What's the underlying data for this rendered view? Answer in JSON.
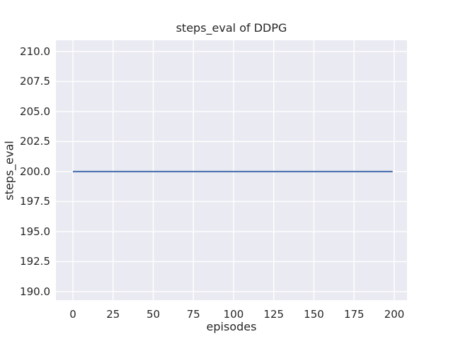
{
  "chart_data": {
    "type": "line",
    "title": "steps_eval of DDPG",
    "xlabel": "episodes",
    "ylabel": "steps_eval",
    "x_tick_labels": [
      "0",
      "25",
      "50",
      "75",
      "100",
      "125",
      "150",
      "175",
      "200"
    ],
    "x_tick_values": [
      0,
      25,
      50,
      75,
      100,
      125,
      150,
      175,
      200
    ],
    "y_tick_labels": [
      "210.0",
      "207.5",
      "205.0",
      "202.5",
      "200.0",
      "197.5",
      "195.0",
      "192.5",
      "190.0"
    ],
    "y_tick_values": [
      210.0,
      207.5,
      205.0,
      202.5,
      200.0,
      197.5,
      195.0,
      192.5,
      190.0
    ],
    "xlim": [
      -10.57,
      207.92
    ],
    "ylim": [
      189.29,
      210.94
    ],
    "grid": true,
    "legend": false,
    "series": [
      {
        "name": "steps_eval",
        "color": "#4c72b0",
        "x": [
          0,
          199
        ],
        "values": [
          200,
          200
        ]
      }
    ]
  },
  "colors": {
    "figure_bg": "#ffffff",
    "plot_bg": "#eaeaf2",
    "grid": "#ffffff",
    "line": "#4c72b0",
    "text": "#262626"
  }
}
